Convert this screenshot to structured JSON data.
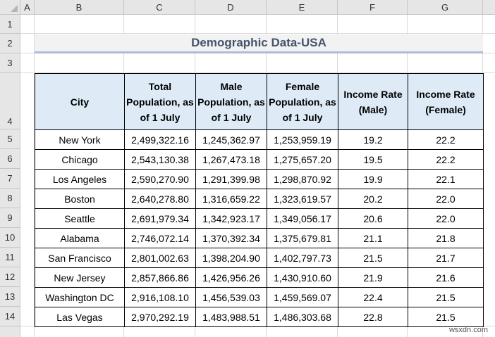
{
  "columns": [
    "A",
    "B",
    "C",
    "D",
    "E",
    "F",
    "G"
  ],
  "rows": [
    "1",
    "2",
    "3",
    "4",
    "5",
    "6",
    "7",
    "8",
    "9",
    "10",
    "11",
    "12",
    "13",
    "14"
  ],
  "title": "Demographic Data-USA",
  "table": {
    "headers": [
      "City",
      "Total Population, as of 1 July",
      "Male Population, as of 1 July",
      "Female Population, as of 1 July",
      "Income Rate (Male)",
      "Income Rate (Female)"
    ],
    "rows": [
      [
        "New York",
        "2,499,322.16",
        "1,245,362.97",
        "1,253,959.19",
        "19.2",
        "22.2"
      ],
      [
        "Chicago",
        "2,543,130.38",
        "1,267,473.18",
        "1,275,657.20",
        "19.5",
        "22.2"
      ],
      [
        "Los Angeles",
        "2,590,270.90",
        "1,291,399.98",
        "1,298,870.92",
        "19.9",
        "22.1"
      ],
      [
        "Boston",
        "2,640,278.80",
        "1,316,659.22",
        "1,323,619.57",
        "20.2",
        "22.0"
      ],
      [
        "Seattle",
        "2,691,979.34",
        "1,342,923.17",
        "1,349,056.17",
        "20.6",
        "22.0"
      ],
      [
        "Alabama",
        "2,746,072.14",
        "1,370,392.34",
        "1,375,679.81",
        "21.1",
        "21.8"
      ],
      [
        "San Francisco",
        "2,801,002.63",
        "1,398,204.90",
        "1,402,797.73",
        "21.5",
        "21.7"
      ],
      [
        "New Jersey",
        "2,857,866.86",
        "1,426,956.26",
        "1,430,910.60",
        "21.9",
        "21.6"
      ],
      [
        "Washington DC",
        "2,916,108.10",
        "1,456,539.03",
        "1,459,569.07",
        "22.4",
        "21.5"
      ],
      [
        "Las Vegas",
        "2,970,292.19",
        "1,483,988.51",
        "1,486,303.68",
        "22.8",
        "21.5"
      ]
    ]
  },
  "watermark": "wsxdn.com"
}
